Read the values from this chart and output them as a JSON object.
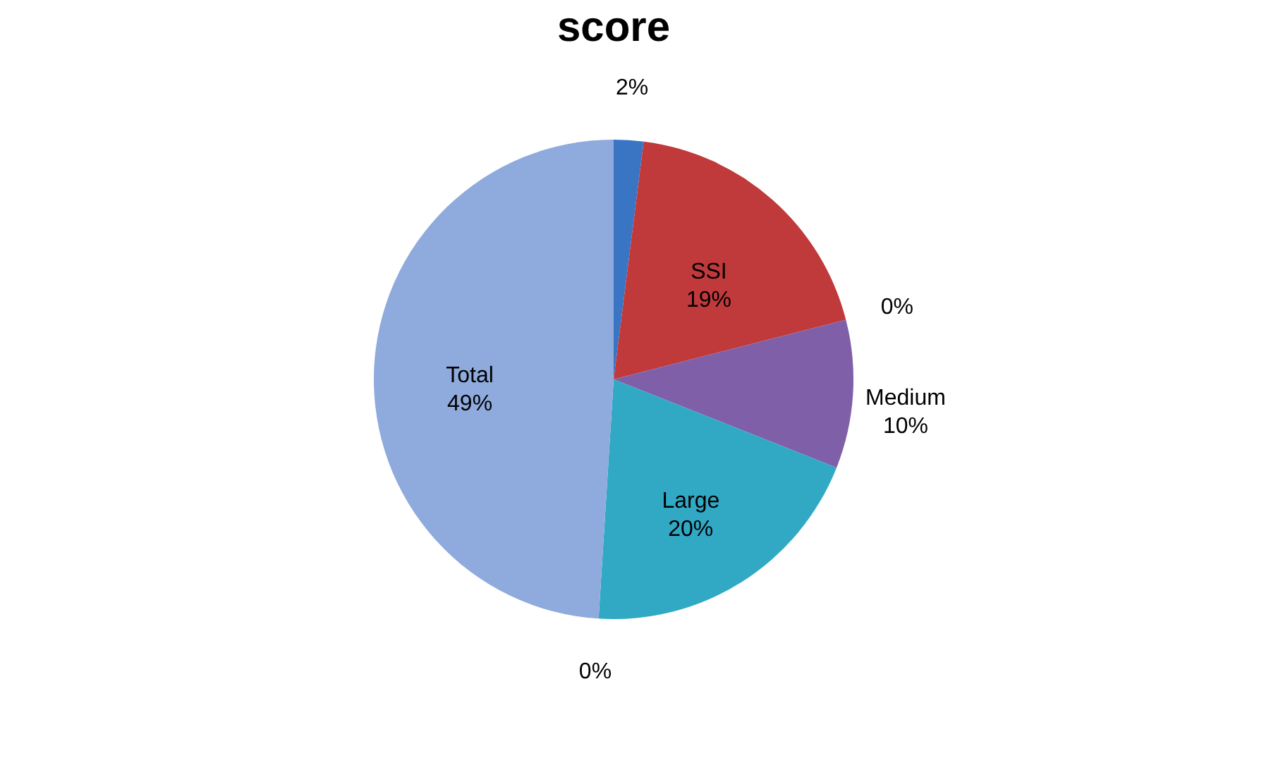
{
  "chart_data": {
    "type": "pie",
    "title": "score",
    "categories": [
      null,
      "SSI",
      null,
      "Medium",
      "Large",
      null,
      "Total"
    ],
    "values": [
      2,
      19,
      0,
      10,
      20,
      0,
      49
    ],
    "value_labels": [
      "2%",
      "19%",
      "0%",
      "10%",
      "20%",
      "0%",
      "49%"
    ],
    "colors": [
      "#3a75c4",
      "#c0393b",
      "#9bbb59",
      "#7f5fa8",
      "#31a9c5",
      "#d2691e",
      "#8faadc"
    ],
    "legend": false
  }
}
